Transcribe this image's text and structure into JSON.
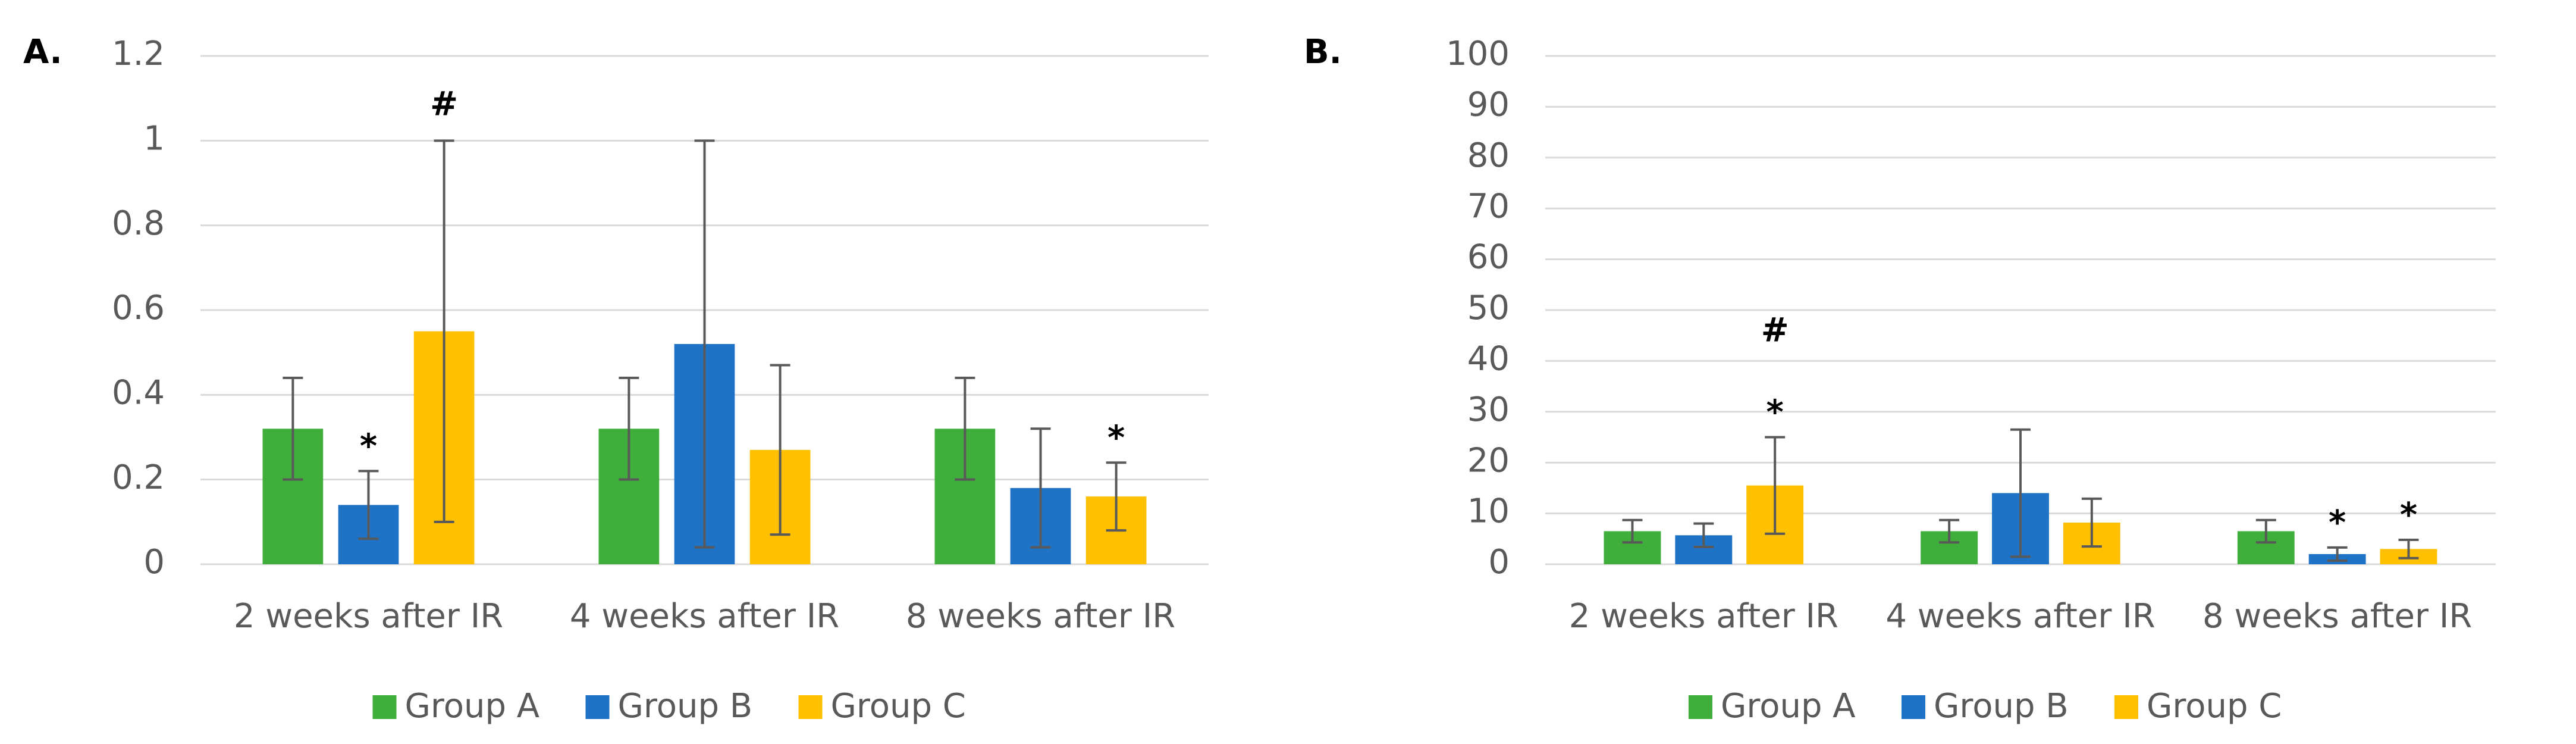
{
  "chart_data": [
    {
      "type": "bar",
      "label": "A.",
      "categories": [
        "2 weeks after IR",
        "4 weeks after IR",
        "8 weeks after IR"
      ],
      "series": [
        {
          "name": "Group A",
          "color": "#3fae3a",
          "values": [
            0.32,
            0.32,
            0.32
          ],
          "errors": [
            0.12,
            0.12,
            0.12
          ]
        },
        {
          "name": "Group B",
          "color": "#1f73c6",
          "values": [
            0.14,
            0.52,
            0.18
          ],
          "errors": [
            0.08,
            0.48,
            0.14
          ]
        },
        {
          "name": "Group C",
          "color": "#ffc000",
          "values": [
            0.55,
            0.27,
            0.16
          ],
          "errors": [
            0.45,
            0.2,
            0.08
          ]
        }
      ],
      "annotations": [
        {
          "text": "*",
          "category": 0,
          "series": 1
        },
        {
          "text": "#",
          "category": 0,
          "series": 2
        },
        {
          "text": "*",
          "category": 2,
          "series": 2
        }
      ],
      "ylim": [
        0,
        1.2
      ],
      "yticks": [
        0,
        0.2,
        0.4,
        0.6,
        0.8,
        1,
        1.2
      ],
      "grid": true,
      "legend": "bottom"
    },
    {
      "type": "bar",
      "label": "B.",
      "categories": [
        "2 weeks after IR",
        "4 weeks after IR",
        "8 weeks after IR"
      ],
      "series": [
        {
          "name": "Group A",
          "color": "#3fae3a",
          "values": [
            6.5,
            6.5,
            6.5
          ],
          "errors": [
            2.2,
            2.2,
            2.2
          ]
        },
        {
          "name": "Group B",
          "color": "#1f73c6",
          "values": [
            5.7,
            14,
            2
          ],
          "errors": [
            2.3,
            12.5,
            1.3
          ]
        },
        {
          "name": "Group C",
          "color": "#ffc000",
          "values": [
            15.5,
            8.2,
            3
          ],
          "errors": [
            9.5,
            4.7,
            1.8
          ]
        }
      ],
      "annotations": [
        {
          "text": "*",
          "category": 0,
          "series": 2
        },
        {
          "text": "#",
          "category": 0,
          "series": 2
        },
        {
          "text": "*",
          "category": 2,
          "series": 1
        },
        {
          "text": "*",
          "category": 2,
          "series": 2
        }
      ],
      "ylim": [
        0,
        100
      ],
      "yticks": [
        0,
        10,
        20,
        30,
        40,
        50,
        60,
        70,
        80,
        90,
        100
      ],
      "grid": true,
      "legend": "bottom"
    }
  ]
}
